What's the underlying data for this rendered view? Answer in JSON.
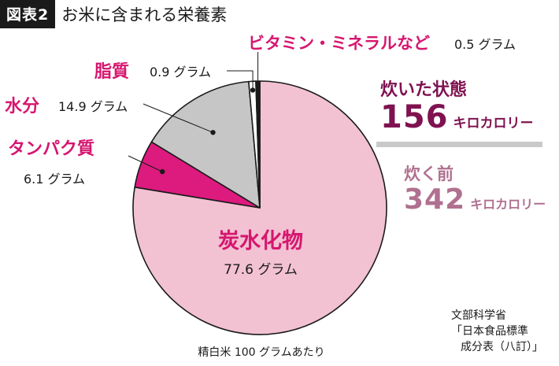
{
  "header": {
    "figure_label": "図表2",
    "title": "お米に含まれる栄養素"
  },
  "colors": {
    "carb": "#f2c2d2",
    "protein": "#dd1a7e",
    "water": "#c6c6c6",
    "fat": "#ffffff",
    "vitamin": "#1a1a1a",
    "magenta_text": "#d6166f",
    "cooked_text": "#7f1250",
    "raw_text": "#b07090",
    "divider": "#c9c9c9"
  },
  "chart_data": {
    "type": "pie",
    "unit": "グラム",
    "slices": [
      {
        "label": "炭水化物",
        "value": 77.6,
        "value_text": "77.6 グラム",
        "color": "#f2c2d2"
      },
      {
        "label": "タンパク質",
        "value": 6.1,
        "value_text": "6.1 グラム",
        "color": "#dd1a7e"
      },
      {
        "label": "水分",
        "value": 14.9,
        "value_text": "14.9 グラム",
        "color": "#c6c6c6"
      },
      {
        "label": "脂質",
        "value": 0.9,
        "value_text": "0.9 グラム",
        "color": "#ffffff"
      },
      {
        "label": "ビタミン・ミネラルなど",
        "value": 0.5,
        "value_text": "0.5 グラム",
        "color": "#1a1a1a"
      }
    ],
    "footnote": "精白米 100 グラムあたり"
  },
  "calories": {
    "cooked": {
      "label": "炊いた状態",
      "value": "156",
      "unit": "キロカロリー"
    },
    "raw": {
      "label": "炊く前",
      "value": "342",
      "unit": "キロカロリー"
    }
  },
  "source": {
    "line1": "文部科学省",
    "line2": "「日本食品標準",
    "line3": "成分表（八訂）」"
  }
}
